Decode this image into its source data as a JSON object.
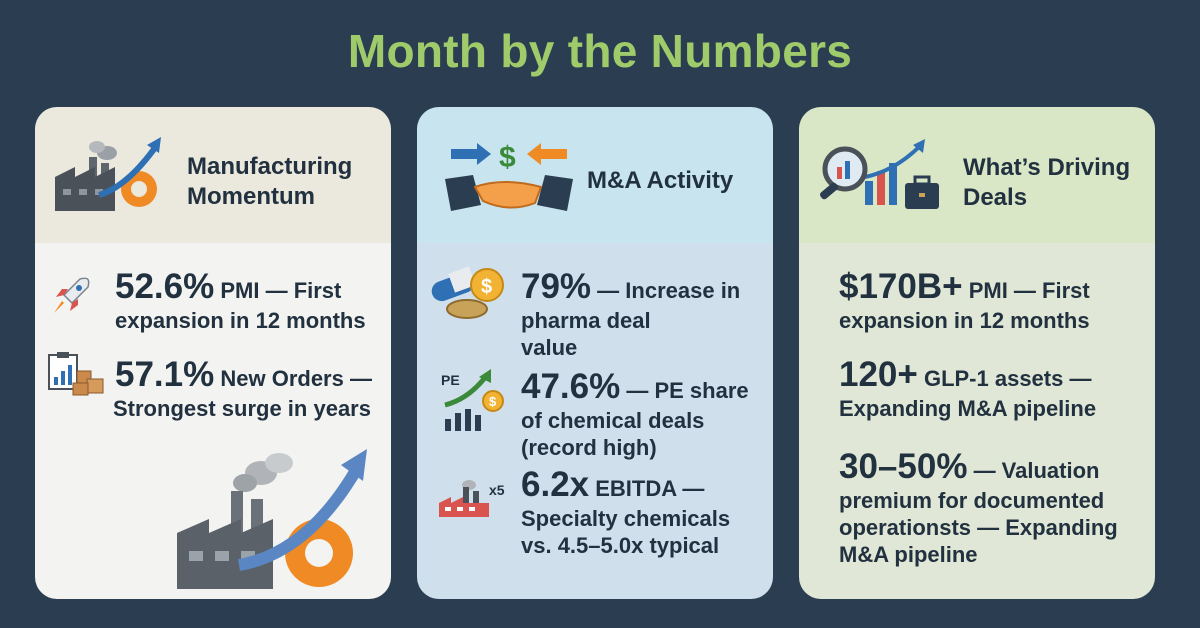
{
  "title": "Month by the Numbers",
  "cards": [
    {
      "heading_line1": "Manufacturing",
      "heading_line2": "Momentum",
      "stats": [
        {
          "big": "52.6%",
          "rest": " PMI — First",
          "line2": "expansion in 12 months",
          "icon": "rocket-icon"
        },
        {
          "big": "57.1%",
          "rest": " New Orders —",
          "line2": "Strongest surge in years",
          "icon": "clipboard-chart-boxes-icon"
        }
      ]
    },
    {
      "heading": "M&A Activity",
      "stats": [
        {
          "big": "79%",
          "rest": " — Increase in",
          "line2": "pharma deal",
          "line3": "value",
          "icon": "pill-coin-icon"
        },
        {
          "big": "47.6%",
          "rest": " — PE share",
          "line2": "of chemical deals",
          "line3": "(record high)",
          "icon": "pe-growth-icon",
          "icon_label": "PE"
        },
        {
          "big": "6.2x",
          "rest": " EBITDA —",
          "line2": "Specialty chemicals",
          "line3": "vs. 4.5–5.0x typical",
          "icon": "factory-multiple-icon",
          "icon_label": "x5"
        }
      ]
    },
    {
      "heading_line1": "What’s Driving",
      "heading_line2": "Deals",
      "stats": [
        {
          "big": "$170B+",
          "rest": " PMI — First",
          "line2": "expansion in 12 months"
        },
        {
          "big": "120+",
          "rest": "  GLP-1 assets —",
          "line2": "Expanding M&A pipeline"
        },
        {
          "big": "30–50%",
          "rest": "  — Valuation",
          "line2": "premium for documented",
          "line3": "operationsts — Expanding",
          "line4": "M&A pipeline"
        }
      ]
    }
  ],
  "colors": {
    "background": "#2b3d50",
    "title": "#9fcb6b",
    "text": "#22313f",
    "accent_orange": "#f08a24",
    "accent_blue": "#2f6fb3"
  }
}
